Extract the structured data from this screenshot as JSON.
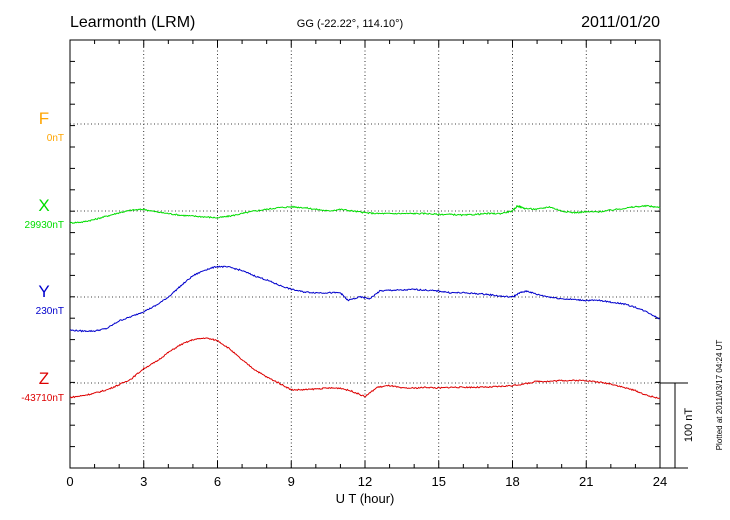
{
  "header": {
    "station": "Learmonth (LRM)",
    "coords": "GG (-22.22°, 114.10°)",
    "date": "2011/01/20"
  },
  "footer": {
    "plotted": "Plotted at 2011/03/17 04:24 UT"
  },
  "scale_bar": {
    "label": "100 nT",
    "value_nT": 100
  },
  "colors": {
    "F": "#ffa500",
    "X": "#00dd00",
    "Y": "#0000cc",
    "Z": "#dd0000"
  },
  "chart_data": {
    "type": "line",
    "xlabel": "U T (hour)",
    "xlim": [
      0,
      24
    ],
    "xticks": [
      "0",
      "3",
      "6",
      "9",
      "12",
      "15",
      "18",
      "21",
      "24"
    ],
    "units": "nT",
    "series": [
      {
        "name": "F",
        "baseline": "0nT",
        "x": [],
        "y": []
      },
      {
        "name": "X",
        "baseline": "29930nT",
        "x": [
          0,
          0.5,
          1,
          1.5,
          2,
          2.5,
          3,
          3.5,
          4,
          4.5,
          5,
          5.5,
          6,
          6.5,
          7,
          7.5,
          8,
          8.5,
          9,
          9.5,
          10,
          10.5,
          11,
          11.5,
          12,
          12.5,
          13,
          13.5,
          14,
          14.5,
          15,
          15.5,
          16,
          16.5,
          17,
          17.5,
          18,
          18.2,
          18.5,
          19,
          19.5,
          20,
          20.5,
          21,
          21.5,
          22,
          22.5,
          23,
          23.5,
          24
        ],
        "y": [
          -14,
          -13,
          -10,
          -6,
          -2,
          1,
          2,
          -1,
          -3,
          -5,
          -6,
          -7,
          -8,
          -6,
          -3,
          0,
          2,
          4,
          5,
          4,
          2,
          0,
          2,
          0,
          -2,
          -3,
          -3,
          -3,
          -3,
          -3,
          -4,
          -4,
          -5,
          -4,
          -3,
          -3,
          0,
          6,
          3,
          2,
          5,
          0,
          -2,
          -1,
          -1,
          1,
          3,
          5,
          6,
          4
        ]
      },
      {
        "name": "Y",
        "baseline": "230nT",
        "x": [
          0,
          0.5,
          1,
          1.5,
          2,
          2.5,
          3,
          3.5,
          4,
          4.5,
          5,
          5.5,
          6,
          6.5,
          7,
          7.5,
          8,
          8.5,
          9,
          9.5,
          10,
          10.5,
          11,
          11.3,
          11.8,
          12.2,
          12.6,
          13,
          13.5,
          14,
          14.5,
          15,
          15.5,
          16,
          16.5,
          17,
          17.5,
          18,
          18.3,
          18.6,
          19,
          19.5,
          20,
          20.5,
          21,
          21.5,
          22,
          22.5,
          23,
          23.5,
          24
        ],
        "y": [
          -39,
          -40,
          -40,
          -37,
          -28,
          -23,
          -17,
          -10,
          0,
          13,
          25,
          32,
          36,
          35,
          31,
          25,
          20,
          14,
          9,
          6,
          5,
          5,
          5,
          -4,
          0,
          -2,
          7,
          8,
          8,
          9,
          8,
          7,
          5,
          5,
          4,
          3,
          1,
          0,
          5,
          7,
          3,
          0,
          -2,
          -3,
          -4,
          -4,
          -6,
          -8,
          -12,
          -18,
          -26
        ]
      },
      {
        "name": "Z",
        "baseline": "-43710nT",
        "x": [
          0,
          0.5,
          1,
          1.5,
          2,
          2.5,
          3,
          3.5,
          4,
          4.5,
          5,
          5.5,
          6,
          6.5,
          7,
          7.5,
          8,
          8.5,
          9,
          9.5,
          10,
          10.5,
          11,
          11.5,
          12,
          12.5,
          13,
          13.5,
          14,
          14.5,
          15,
          15.5,
          16,
          16.5,
          17,
          17.5,
          18,
          18.5,
          19,
          19.5,
          20,
          20.5,
          21,
          21.5,
          22,
          22.5,
          23,
          23.5,
          24
        ],
        "y": [
          -17,
          -15,
          -12,
          -8,
          -2,
          5,
          17,
          25,
          36,
          45,
          51,
          53,
          50,
          40,
          27,
          16,
          7,
          0,
          -8,
          -8,
          -7,
          -6,
          -6,
          -10,
          -16,
          -5,
          -3,
          -6,
          -6,
          -5,
          -6,
          -5,
          -5,
          -5,
          -5,
          -4,
          -3,
          -1,
          2,
          2,
          3,
          3,
          3,
          1,
          -1,
          -5,
          -9,
          -15,
          -18
        ]
      }
    ]
  }
}
